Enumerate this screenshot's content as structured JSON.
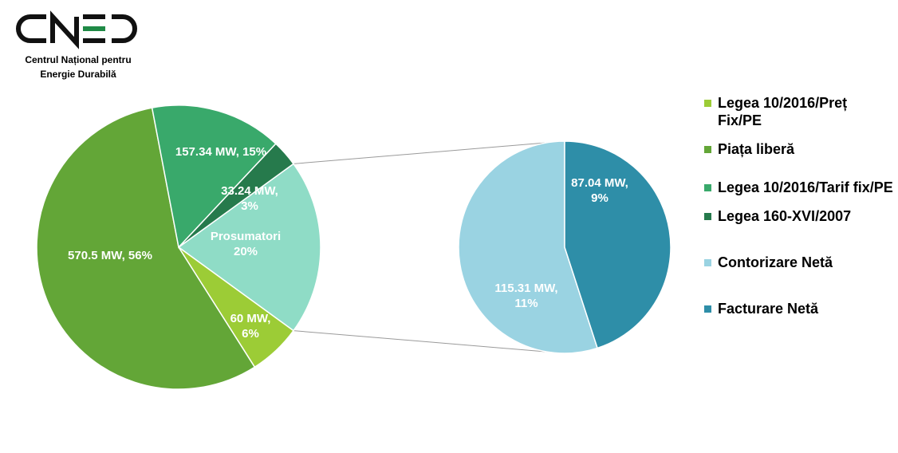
{
  "logo": {
    "letters": "CNED",
    "name_line1": "Centrul Național pentru",
    "name_line2": "Energie Durabilă",
    "color_dark": "#111111",
    "color_accent": "#1f8a46"
  },
  "chart_data": [
    {
      "type": "pie",
      "slices": [
        {
          "label": "Prosumatori",
          "value": 20,
          "value_text": "Prosumatori",
          "percent_text": "20%",
          "color": "#8fdcc6"
        },
        {
          "label": "Legea 10/2016/Preț Fix/PE",
          "value": 6,
          "value_text": "60 MW,",
          "percent_text": "6%",
          "color": "#9ccc36"
        },
        {
          "label": "Piața liberă",
          "value": 56,
          "value_text": "570.5 MW, 56%",
          "percent_text": "",
          "color": "#63a637"
        },
        {
          "label": "Legea 10/2016/Tarif fix/PE",
          "value": 15,
          "value_text": "157.34 MW, 15%",
          "percent_text": "",
          "color": "#39a96b"
        },
        {
          "label": "Legea 160-XVI/2007",
          "value": 3,
          "value_text": "33.24 MW,",
          "percent_text": "3%",
          "color": "#267a4c"
        }
      ]
    },
    {
      "type": "pie",
      "slices": [
        {
          "label": "Contorizare Netă",
          "value": 11,
          "value_text": "115.31 MW,",
          "percent_text": "11%",
          "color": "#9ad3e2"
        },
        {
          "label": "Facturare Netă",
          "value": 9,
          "value_text": "87.04 MW,",
          "percent_text": "9%",
          "color": "#2e8ea8"
        }
      ]
    }
  ],
  "legend": [
    {
      "label": "Legea 10/2016/Preț Fix/PE",
      "color": "#9ccc36"
    },
    {
      "label": "Piața liberă",
      "color": "#63a637"
    },
    {
      "label": "Legea 10/2016/Tarif fix/PE",
      "color": "#39a96b"
    },
    {
      "label": "Legea 160-XVI/2007",
      "color": "#267a4c"
    },
    {
      "label": "Contorizare Netă",
      "color": "#9ad3e2"
    },
    {
      "label": "Facturare Netă",
      "color": "#2e8ea8"
    }
  ]
}
